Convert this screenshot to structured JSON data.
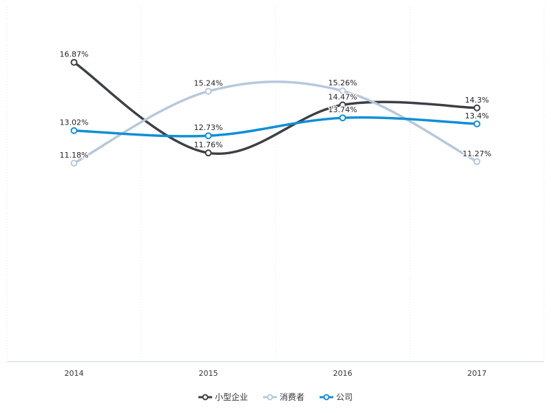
{
  "chart_data": {
    "type": "line",
    "title": "",
    "xlabel": "",
    "ylabel": "",
    "categories": [
      "2014",
      "2015",
      "2016",
      "2017"
    ],
    "ylim": [
      0,
      20
    ],
    "grid": "vertical-dotted",
    "legend_position": "bottom-center",
    "series": [
      {
        "name": "小型企业",
        "color": "#3c3f44",
        "values": [
          16.87,
          11.76,
          14.47,
          14.3
        ],
        "labels": [
          "16.87%",
          "11.76%",
          "14.47%",
          "14.3%"
        ]
      },
      {
        "name": "消费者",
        "color": "#b6c8db",
        "values": [
          11.18,
          15.24,
          15.26,
          11.27
        ],
        "labels": [
          "11.18%",
          "15.24%",
          "15.26%",
          "11.27%"
        ]
      },
      {
        "name": "公司",
        "color": "#0f8fd6",
        "values": [
          13.02,
          12.73,
          13.74,
          13.4
        ],
        "labels": [
          "13.02%",
          "12.73%",
          "13.74%",
          "13.4%"
        ]
      }
    ]
  }
}
